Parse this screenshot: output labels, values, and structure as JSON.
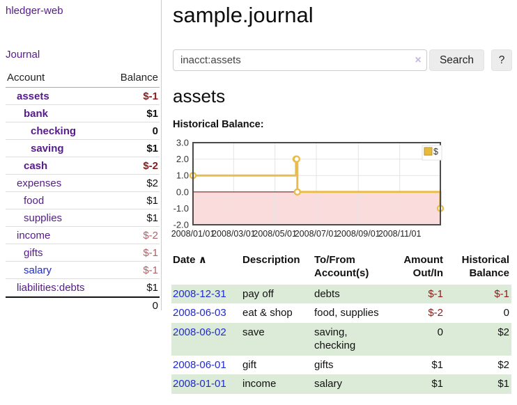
{
  "app_title": "hledger-web",
  "nav": {
    "journal_label": "Journal"
  },
  "sidebar": {
    "columns": {
      "account": "Account",
      "balance": "Balance"
    },
    "accounts": [
      {
        "name": "assets",
        "balance": "$-1",
        "depth": 1,
        "bold": true,
        "neg": "strong",
        "link": "purple"
      },
      {
        "name": "bank",
        "balance": "$1",
        "depth": 2,
        "bold": true,
        "neg": "none",
        "link": "purple"
      },
      {
        "name": "checking",
        "balance": "0",
        "depth": 3,
        "bold": true,
        "neg": "none",
        "link": "purple"
      },
      {
        "name": "saving",
        "balance": "$1",
        "depth": 3,
        "bold": true,
        "neg": "none",
        "link": "purple"
      },
      {
        "name": "cash",
        "balance": "$-2",
        "depth": 2,
        "bold": true,
        "neg": "strong",
        "link": "purple"
      },
      {
        "name": "expenses",
        "balance": "$2",
        "depth": 1,
        "bold": false,
        "neg": "none",
        "link": "purple"
      },
      {
        "name": "food",
        "balance": "$1",
        "depth": 2,
        "bold": false,
        "neg": "none",
        "link": "purple"
      },
      {
        "name": "supplies",
        "balance": "$1",
        "depth": 2,
        "bold": false,
        "neg": "none",
        "link": "purple"
      },
      {
        "name": "income",
        "balance": "$-2",
        "depth": 1,
        "bold": false,
        "neg": "dim",
        "link": "purple"
      },
      {
        "name": "gifts",
        "balance": "$-1",
        "depth": 2,
        "bold": false,
        "neg": "dim",
        "link": "purple"
      },
      {
        "name": "salary",
        "balance": "$-1",
        "depth": 2,
        "bold": false,
        "neg": "dim",
        "link": "blue"
      },
      {
        "name": "liabilities:debts",
        "balance": "$1",
        "depth": 1,
        "bold": false,
        "neg": "none",
        "link": "purple"
      }
    ],
    "total": "0"
  },
  "main": {
    "title": "sample.journal",
    "search": {
      "value": "inacct:assets",
      "clear_icon": "×",
      "button_label": "Search",
      "help_label": "?"
    },
    "account_heading": "assets",
    "chart_heading": "Historical Balance:"
  },
  "chart_data": {
    "type": "line",
    "line_style": "step-after",
    "title": "Historical Balance:",
    "legend": [
      {
        "label": "$",
        "position": "top-right"
      }
    ],
    "ylim": [
      -2,
      3
    ],
    "y_ticks": [
      3.0,
      2.0,
      1.0,
      0.0,
      -1.0,
      -2.0
    ],
    "x_range": [
      "2008-01-01",
      "2008-12-31"
    ],
    "x_ticks": [
      {
        "date": "2008-01-01",
        "label": "2008/01/01"
      },
      {
        "date": "2008-03-01",
        "label": "2008/03/01"
      },
      {
        "date": "2008-05-01",
        "label": "2008/05/01"
      },
      {
        "date": "2008-07-01",
        "label": "2008/07/01"
      },
      {
        "date": "2008-09-01",
        "label": "2008/09/01"
      },
      {
        "date": "2008-11-01",
        "label": "2008/11/01"
      }
    ],
    "series": [
      {
        "name": "$",
        "data": [
          [
            "2008-01-01",
            1
          ],
          [
            "2008-06-01",
            2
          ],
          [
            "2008-06-02",
            2
          ],
          [
            "2008-06-03",
            0
          ],
          [
            "2008-12-31",
            -1
          ]
        ]
      }
    ],
    "negative_region_shaded": true,
    "grid": true
  },
  "register": {
    "columns": {
      "date": "Date",
      "description": "Description",
      "accounts": "To/From Account(s)",
      "amount": "Amount Out/In",
      "balance": "Historical Balance"
    },
    "sort_icon": "∧",
    "rows": [
      {
        "date": "2008-12-31",
        "description": "pay off",
        "accounts": "debts",
        "amount": "$-1",
        "amount_neg": true,
        "balance": "$-1",
        "balance_neg": true,
        "green": true
      },
      {
        "date": "2008-06-03",
        "description": "eat & shop",
        "accounts": "food, supplies",
        "amount": "$-2",
        "amount_neg": true,
        "balance": "0",
        "balance_neg": false,
        "green": false
      },
      {
        "date": "2008-06-02",
        "description": "save",
        "accounts": "saving, checking",
        "amount": "0",
        "amount_neg": false,
        "balance": "$2",
        "balance_neg": false,
        "green": true
      },
      {
        "date": "2008-06-01",
        "description": "gift",
        "accounts": "gifts",
        "amount": "$1",
        "amount_neg": false,
        "balance": "$2",
        "balance_neg": false,
        "green": false
      },
      {
        "date": "2008-01-01",
        "description": "income",
        "accounts": "salary",
        "amount": "$1",
        "amount_neg": false,
        "balance": "$1",
        "balance_neg": false,
        "green": true
      }
    ]
  },
  "colors": {
    "link_purple": "#551a8b",
    "link_blue": "#1f2ad6",
    "negative": "#8b1a1a",
    "negative_dim": "#b25f66",
    "row_green": "#dcebd8",
    "chart_gold": "#e8bd4e",
    "chart_gold_fill": "#e6ba3d",
    "chart_negative_area": "#fbdcdc",
    "chart_zero_line": "#8b1a1a",
    "chart_border": "#4a4a4a"
  }
}
